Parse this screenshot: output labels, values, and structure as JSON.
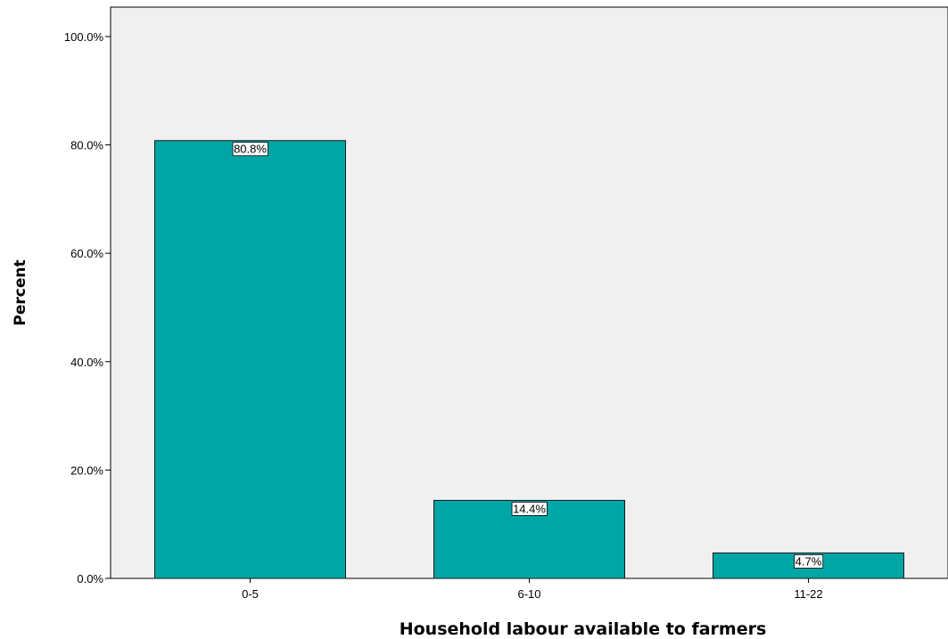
{
  "chart_data": {
    "type": "bar",
    "categories": [
      "0-5",
      "6-10",
      "11-22"
    ],
    "values": [
      80.8,
      14.4,
      4.7
    ],
    "data_labels": [
      "80.8%",
      "14.4%",
      "4.7%"
    ],
    "title": "",
    "xlabel": "Household labour available to farmers",
    "ylabel": "Percent",
    "ylim": [
      0,
      100
    ],
    "yticks": [
      0,
      20,
      40,
      60,
      80,
      100
    ],
    "ytick_labels": [
      "0.0%",
      "20.0%",
      "40.0%",
      "60.0%",
      "80.0%",
      "100.0%"
    ],
    "grid": false,
    "legend": "none",
    "colors": {
      "bar_fill": "#00A5A5",
      "bar_stroke": "#1a1a1a",
      "plot_background": "#F0F0F0",
      "axis": "#000000"
    }
  }
}
